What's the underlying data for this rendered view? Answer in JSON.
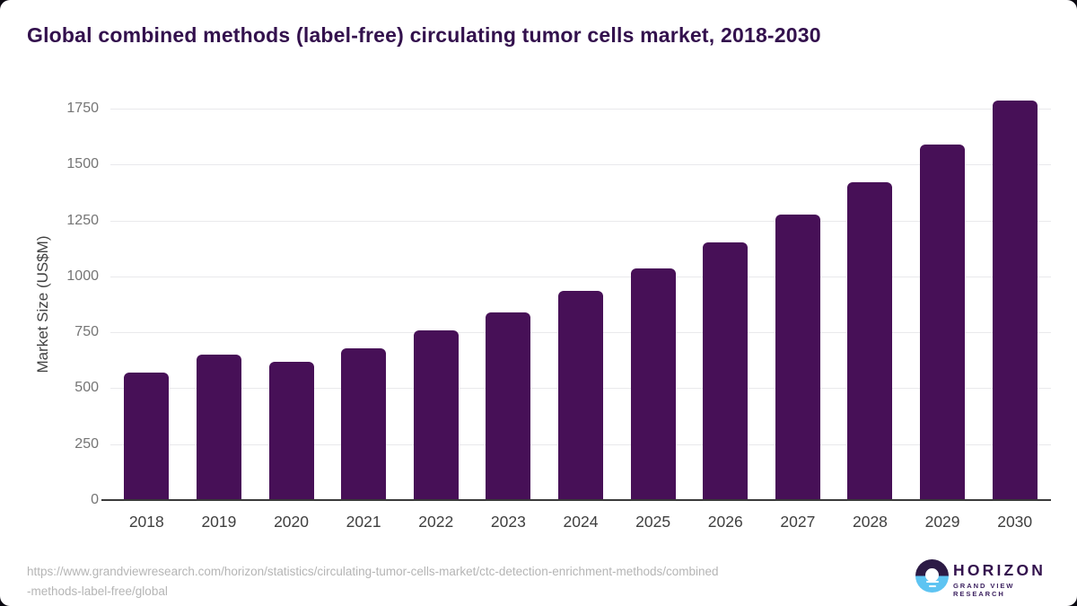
{
  "title": "Global combined methods (label-free) circulating tumor cells market, 2018-2030",
  "chart_data": {
    "type": "bar",
    "title": "Global combined methods (label-free) circulating tumor cells market, 2018-2030",
    "categories": [
      "2018",
      "2019",
      "2020",
      "2021",
      "2022",
      "2023",
      "2024",
      "2025",
      "2026",
      "2027",
      "2028",
      "2029",
      "2030"
    ],
    "values": [
      570,
      650,
      620,
      680,
      760,
      840,
      935,
      1035,
      1150,
      1275,
      1420,
      1590,
      1785
    ],
    "xlabel": "",
    "ylabel": "Market Size (US$M)",
    "ylim": [
      0,
      1800
    ],
    "yticks": [
      0,
      250,
      500,
      750,
      1000,
      1250,
      1500,
      1750
    ],
    "grid": true,
    "legend": false,
    "bar_color": "#471057"
  },
  "footer": {
    "url_line1": "https://www.grandviewresearch.com/horizon/statistics/circulating-tumor-cells-market/ctc-detection-enrichment-methods/combined",
    "url_line2": "-methods-label-free/global"
  },
  "logo": {
    "brand": "HORIZON",
    "subtitle": "GRAND VIEW RESEARCH",
    "icon": "horizon-sun-over-water-icon"
  },
  "colors": {
    "bar": "#471057",
    "title_text": "#33114d",
    "gridline": "#e9e9ec",
    "axis_line": "#3a3a3a",
    "y_tick_label": "#757575",
    "x_tick_label": "#3f3f3f",
    "footer_url": "#b5b5b5",
    "logo_top": "#2c1a45",
    "logo_bottom": "#5ec4f2"
  }
}
